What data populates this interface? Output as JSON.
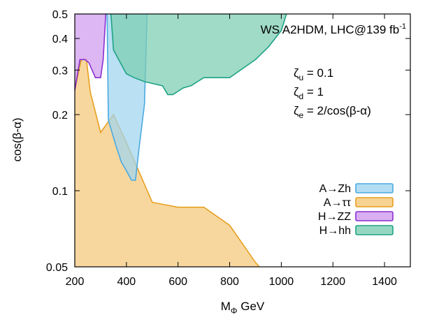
{
  "chart_data": {
    "type": "area",
    "x_axis": {
      "title": "M",
      "title_sub": "Φ",
      "title_suffix": " GeV",
      "range": [
        200,
        1500
      ],
      "ticks": [
        200,
        400,
        600,
        800,
        1000,
        1200,
        1400
      ],
      "tick_labels": [
        "200",
        "400",
        "600",
        "800",
        "1000",
        "1200",
        "1400"
      ]
    },
    "y_axis": {
      "title": "cos(β-α)",
      "scale": "log",
      "range": [
        0.05,
        0.5
      ],
      "ticks": [
        0.05,
        0.1,
        0.2,
        0.3,
        0.4,
        0.5
      ],
      "tick_labels": [
        "0.05",
        "0.1",
        "0.2",
        "0.3",
        "0.4",
        "0.5"
      ]
    },
    "title": {
      "main": "WS A2HDM, LHC@139 fb",
      "sup": "-1"
    },
    "annotations": [
      {
        "sym": "ζ",
        "sub": "u",
        "text": " = 0.1"
      },
      {
        "sym": "ζ",
        "sub": "d",
        "text": " = 1"
      },
      {
        "sym": "ζ",
        "sub": "e",
        "text": " = 2/cos(β-α)"
      }
    ],
    "legend_position": "bottom-right",
    "series": [
      {
        "name": "A→ττ",
        "fill": "#f5c878",
        "stroke": "#e6a020",
        "boundary": [
          [
            200,
            0.25
          ],
          [
            225,
            0.33
          ],
          [
            245,
            0.33
          ],
          [
            260,
            0.245
          ],
          [
            300,
            0.17
          ],
          [
            350,
            0.2
          ],
          [
            400,
            0.155
          ],
          [
            500,
            0.09
          ],
          [
            600,
            0.086
          ],
          [
            700,
            0.086
          ],
          [
            800,
            0.073
          ],
          [
            900,
            0.052
          ],
          [
            915,
            0.05
          ]
        ]
      },
      {
        "name": "A→Zh",
        "fill": "#9fd4f0",
        "stroke": "#4aaae0",
        "boundary": [
          [
            325,
            0.5
          ],
          [
            330,
            0.19
          ],
          [
            360,
            0.15
          ],
          [
            380,
            0.13
          ],
          [
            400,
            0.12
          ],
          [
            420,
            0.11
          ],
          [
            435,
            0.11
          ],
          [
            450,
            0.15
          ],
          [
            470,
            0.22
          ],
          [
            480,
            0.5
          ]
        ]
      },
      {
        "name": "H→ZZ",
        "fill": "#cf9bef",
        "stroke": "#8a2fd0",
        "boundary": [
          [
            200,
            0.25
          ],
          [
            220,
            0.33
          ],
          [
            240,
            0.33
          ],
          [
            255,
            0.32
          ],
          [
            280,
            0.28
          ],
          [
            300,
            0.28
          ],
          [
            310,
            0.33
          ],
          [
            320,
            0.5
          ]
        ]
      },
      {
        "name": "H→hh",
        "fill": "#7ccdb2",
        "stroke": "#1ea385",
        "boundary": [
          [
            340,
            0.5
          ],
          [
            350,
            0.36
          ],
          [
            400,
            0.29
          ],
          [
            430,
            0.28
          ],
          [
            470,
            0.27
          ],
          [
            540,
            0.26
          ],
          [
            560,
            0.24
          ],
          [
            580,
            0.24
          ],
          [
            620,
            0.255
          ],
          [
            650,
            0.26
          ],
          [
            700,
            0.28
          ],
          [
            800,
            0.28
          ],
          [
            900,
            0.33
          ],
          [
            950,
            0.37
          ],
          [
            1000,
            0.43
          ],
          [
            1020,
            0.5
          ]
        ]
      }
    ]
  }
}
